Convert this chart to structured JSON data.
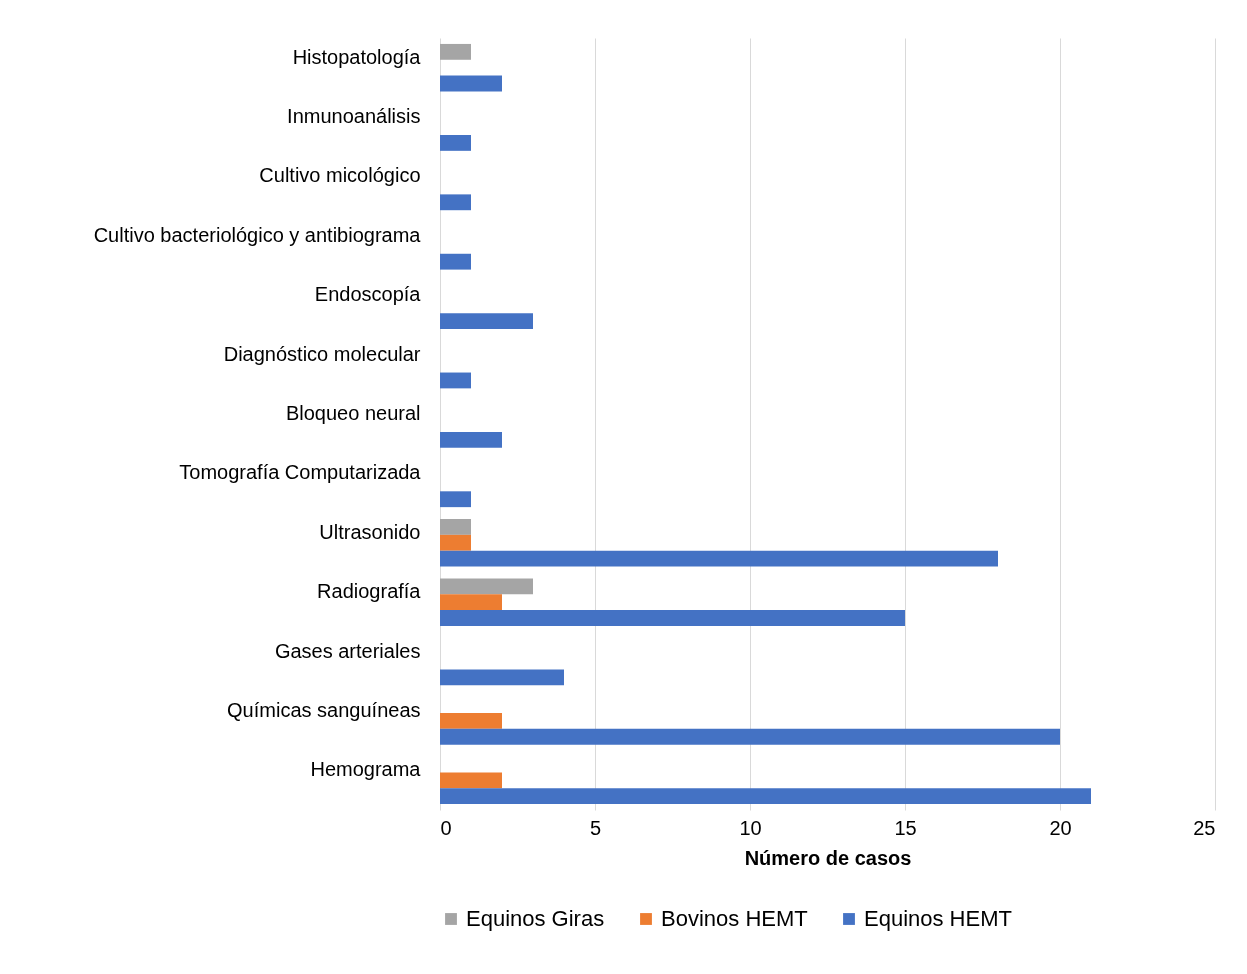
{
  "chart_data": {
    "type": "bar",
    "orientation": "horizontal",
    "xlabel": "Número de casos",
    "categories": [
      "Histopatología",
      "Inmunoanálisis",
      "Cultivo micológico",
      "Cultivo bacteriológico y antibiograma",
      "Endoscopía ",
      "Diagnóstico molecular",
      "Bloqueo neural",
      "Tomografía Computarizada",
      "Ultrasonido",
      "Radiografía",
      "Gases arteriales",
      "Químicas sanguíneas",
      "Hemograma"
    ],
    "series": [
      {
        "name": "Equinos Giras",
        "color": "#a5a5a5",
        "values": [
          1,
          null,
          null,
          null,
          null,
          null,
          null,
          null,
          1,
          3,
          null,
          null,
          null
        ]
      },
      {
        "name": "Bovinos HEMT",
        "color": "#ed7d31",
        "values": [
          null,
          null,
          null,
          null,
          null,
          null,
          null,
          null,
          1,
          2,
          null,
          2,
          2
        ]
      },
      {
        "name": "Equinos HEMT",
        "color": "#4472c4",
        "values": [
          2,
          1,
          1,
          1,
          3,
          1,
          2,
          1,
          18,
          15,
          4,
          20,
          21
        ]
      }
    ],
    "xlim": [
      0,
      25
    ],
    "xticks": [
      0,
      5,
      10,
      15,
      20,
      25
    ],
    "grid": "x",
    "legend": "bottom"
  }
}
